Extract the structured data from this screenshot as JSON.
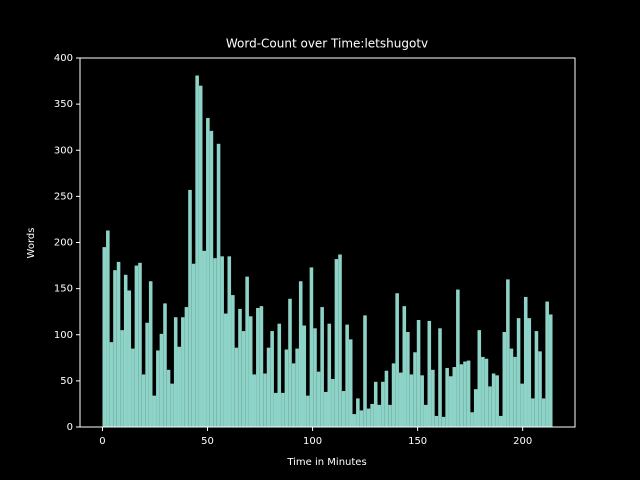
{
  "chart_data": {
    "type": "histogram",
    "title": "Word-Count over Time:letshugotv",
    "xlabel": "Time in Minutes",
    "ylabel": "Words",
    "color": "#8dd3c7",
    "bins": [
      0,
      1.7,
      3.4,
      5.1,
      6.8,
      8.5,
      10.2,
      11.9,
      13.6,
      15.3,
      17,
      18.7,
      20.4,
      22.1,
      23.8,
      25.5,
      27.2,
      28.9,
      30.6,
      32.3,
      34,
      35.7,
      37.4,
      39.1,
      40.8,
      42.5,
      44.2,
      45.9,
      47.6,
      49.3,
      51,
      52.7,
      54.4,
      56.1,
      57.8,
      59.5,
      61.2,
      62.9,
      64.6,
      66.3,
      68,
      69.7,
      71.4,
      73.1,
      74.8,
      76.5,
      78.2,
      79.9,
      81.6,
      83.3,
      85,
      86.7,
      88.4,
      90.1,
      91.8,
      93.5,
      95.2,
      96.9,
      98.6,
      100.3,
      102,
      103.7,
      105.4,
      107.1,
      108.8,
      110.5,
      112.2,
      113.9,
      115.6,
      117.3,
      119,
      120.7,
      122.4,
      124.1,
      125.8,
      127.5,
      129.2,
      130.9,
      132.6,
      134.3,
      136,
      137.7,
      139.4,
      141.1,
      142.8,
      144.5,
      146.2,
      147.9,
      149.6,
      151.3,
      153,
      154.7,
      156.4,
      158.1,
      159.8,
      161.5,
      163.2,
      164.9,
      166.6,
      168.3,
      170,
      171.7,
      173.4,
      175.1,
      176.8,
      178.5,
      180.2,
      181.9,
      183.6,
      185.3,
      187,
      188.7,
      190.4,
      192.1,
      193.8,
      195.5,
      197.2,
      198.9,
      200.6,
      202.3,
      204,
      205.7,
      207.4,
      209.1,
      210.8,
      212.5,
      214.2
    ],
    "values": [
      195,
      213,
      92,
      170,
      179,
      105,
      165,
      148,
      85,
      175,
      178,
      57,
      113,
      158,
      34,
      83,
      101,
      134,
      62,
      47,
      119,
      87,
      119,
      130,
      257,
      177,
      381,
      370,
      191,
      335,
      321,
      183,
      307,
      185,
      123,
      185,
      143,
      86,
      128,
      104,
      163,
      120,
      57,
      129,
      131,
      58,
      86,
      104,
      37,
      112,
      37,
      84,
      139,
      69,
      85,
      158,
      110,
      34,
      173,
      107,
      60,
      130,
      38,
      112,
      52,
      182,
      187,
      39,
      111,
      95,
      14,
      31,
      18,
      121,
      20,
      25,
      49,
      24,
      49,
      61,
      24,
      69,
      145,
      59,
      131,
      103,
      57,
      81,
      116,
      56,
      24,
      115,
      62,
      12,
      107,
      11,
      64,
      55,
      65,
      149,
      68,
      71,
      72,
      16,
      41,
      105,
      76,
      74,
      44,
      58,
      56,
      12,
      103,
      160,
      85,
      76,
      118,
      47,
      141,
      118,
      31,
      104,
      82,
      31,
      136,
      122
    ],
    "xlim": [
      -10.7,
      224.9
    ],
    "xticks": [
      0,
      50,
      100,
      150,
      200
    ],
    "ylim": [
      0,
      400
    ],
    "yticks": [
      0,
      50,
      100,
      150,
      200,
      250,
      300,
      350,
      400
    ]
  }
}
